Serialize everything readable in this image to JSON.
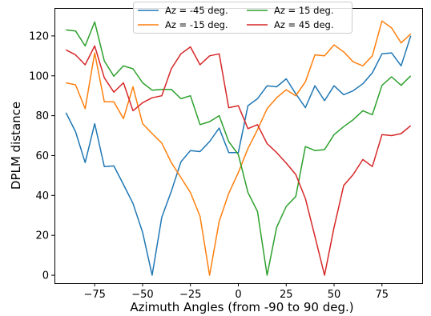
{
  "chart_data": {
    "type": "line",
    "xlabel": "Azimuth Angles (from -90 to 90 deg.)",
    "ylabel": "DPLM distance",
    "xlim": [
      -96,
      96
    ],
    "ylim": [
      -4,
      134
    ],
    "xticks": [
      -75,
      -50,
      -25,
      0,
      25,
      50,
      75
    ],
    "xtick_labels": [
      "−75",
      "−50",
      "−25",
      "0",
      "25",
      "50",
      "75"
    ],
    "yticks": [
      0,
      20,
      40,
      60,
      80,
      100,
      120
    ],
    "ytick_labels": [
      "0",
      "20",
      "40",
      "60",
      "80",
      "100",
      "120"
    ],
    "grid": false,
    "legend_position": "top-center",
    "x": [
      -90,
      -85,
      -80,
      -75,
      -70,
      -65,
      -60,
      -55,
      -50,
      -45,
      -40,
      -35,
      -30,
      -25,
      -20,
      -15,
      -10,
      -5,
      0,
      5,
      10,
      15,
      20,
      25,
      30,
      35,
      40,
      45,
      50,
      55,
      60,
      65,
      70,
      75,
      80,
      85,
      90
    ],
    "series": [
      {
        "name": "Az = -45 deg.",
        "color": "#1f77b4",
        "values": [
          81.5,
          72,
          56.5,
          76,
          54.5,
          54.8,
          45.5,
          36,
          21.5,
          0,
          29,
          42,
          56.8,
          62.5,
          62,
          67,
          73.8,
          61.5,
          61.5,
          85,
          88.5,
          95,
          94.5,
          98.5,
          91,
          84,
          95,
          87.5,
          95,
          90.5,
          92.5,
          96,
          101.5,
          111,
          111.5,
          105,
          120
        ]
      },
      {
        "name": "Az = -15 deg.",
        "color": "#ff7f0e",
        "values": [
          96.5,
          95.5,
          83.5,
          111.5,
          87,
          87,
          78.5,
          94.5,
          76,
          71,
          66.3,
          56.5,
          49,
          41.5,
          29.5,
          0,
          27,
          41,
          51.5,
          63.5,
          73,
          83.5,
          89,
          93,
          90,
          97,
          110.5,
          110,
          115.5,
          112,
          107,
          105,
          110,
          127.5,
          124,
          116.5,
          121
        ]
      },
      {
        "name": "Az = 15 deg.",
        "color": "#2ca02c",
        "values": [
          123,
          122.5,
          115,
          127,
          107.5,
          99.8,
          105,
          103.5,
          96.5,
          92.8,
          93.2,
          93.2,
          88.5,
          90,
          75.5,
          77,
          80,
          67,
          60.5,
          41.5,
          32,
          0,
          24,
          34.5,
          39.5,
          64.5,
          62.5,
          63,
          70.5,
          74.5,
          78,
          82.5,
          80.5,
          95.2,
          99.5,
          95.2,
          100
        ]
      },
      {
        "name": "Az = 45 deg.",
        "color": "#d62728",
        "values": [
          113,
          110.5,
          105.5,
          115,
          99,
          91.8,
          96.5,
          82.5,
          86.5,
          89,
          90,
          103.5,
          111,
          114.5,
          105.5,
          110,
          111,
          84,
          85,
          73.5,
          75.5,
          66,
          61.5,
          56.2,
          50.5,
          38.5,
          19.5,
          0,
          24,
          45,
          50.5,
          58,
          54.5,
          70.5,
          70,
          71,
          75
        ]
      }
    ]
  }
}
